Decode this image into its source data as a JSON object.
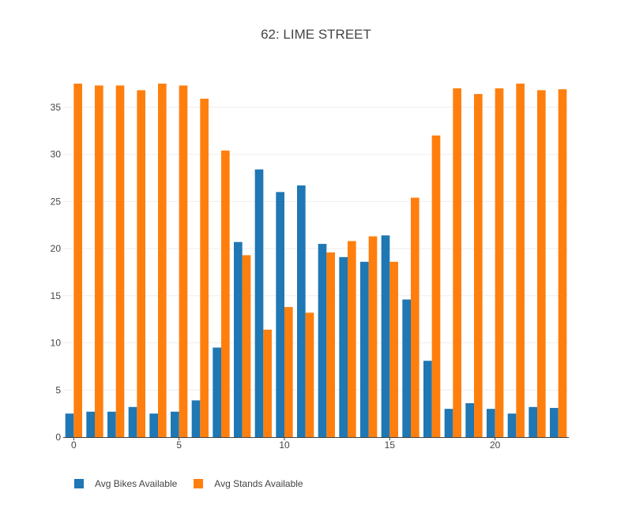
{
  "chart_data": {
    "type": "bar",
    "title": "62: LIME STREET",
    "xlabel": "",
    "ylabel": "",
    "x": [
      0,
      1,
      2,
      3,
      4,
      5,
      6,
      7,
      8,
      9,
      10,
      11,
      12,
      13,
      14,
      15,
      16,
      17,
      18,
      19,
      20,
      21,
      22,
      23
    ],
    "x_ticks": [
      0,
      5,
      10,
      15,
      20
    ],
    "y_ticks": [
      0,
      5,
      10,
      15,
      20,
      25,
      30,
      35
    ],
    "ylim": [
      0,
      38
    ],
    "grid": true,
    "legend_position": "bottom-left",
    "series": [
      {
        "name": "Avg Bikes Available",
        "color": "#1f77b4",
        "values": [
          2.5,
          2.7,
          2.7,
          3.2,
          2.5,
          2.7,
          3.9,
          9.5,
          20.7,
          28.4,
          26.0,
          26.7,
          20.5,
          19.1,
          18.6,
          21.4,
          14.6,
          8.1,
          3.0,
          3.6,
          3.0,
          2.5,
          3.2,
          3.1
        ]
      },
      {
        "name": "Avg Stands Available",
        "color": "#ff7f0e",
        "values": [
          37.5,
          37.3,
          37.3,
          36.8,
          37.5,
          37.3,
          35.9,
          30.4,
          19.3,
          11.4,
          13.8,
          13.2,
          19.6,
          20.8,
          21.3,
          18.6,
          25.4,
          32.0,
          37.0,
          36.4,
          37.0,
          37.5,
          36.8,
          36.9
        ]
      }
    ]
  }
}
